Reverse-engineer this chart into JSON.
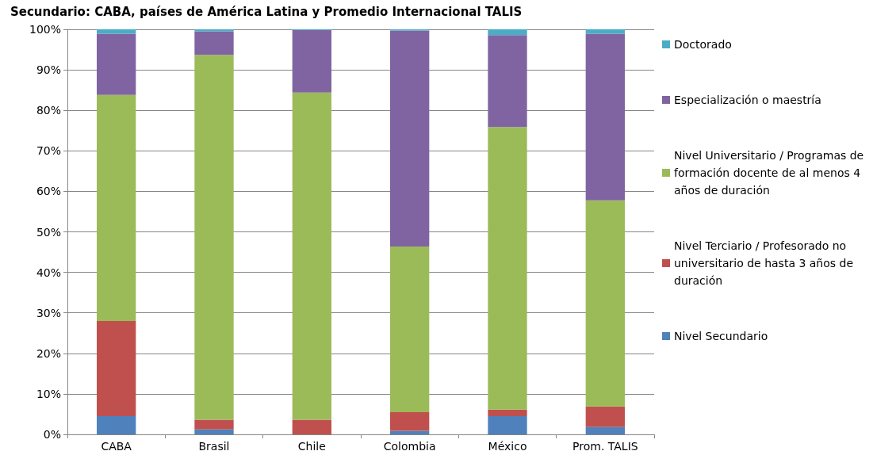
{
  "chart_data": {
    "type": "bar",
    "stacked": true,
    "title": "Secundario: CABA, países de América Latina y Promedio Internacional TALIS",
    "categories": [
      "CABA",
      "Brasil",
      "Chile",
      "Colombia",
      "México",
      "Prom. TALIS"
    ],
    "series": [
      {
        "name": "Nivel Secundario",
        "color": "#4f81bd",
        "values": [
          4.5,
          1.2,
          0,
          0.9,
          4.5,
          1.8
        ]
      },
      {
        "name": "Nivel Terciario / Profesorado no universitario de hasta 3 años de duración",
        "color": "#c0504d",
        "values": [
          23.5,
          2.4,
          3.6,
          4.6,
          1.6,
          5.1
        ]
      },
      {
        "name": "Nivel Universitario / Programas de formación docente de al menos 4 años de duración",
        "color": "#9bbb59",
        "values": [
          55.8,
          90.1,
          80.8,
          40.9,
          69.8,
          50.9
        ]
      },
      {
        "name": "Especialización o maestría",
        "color": "#8064a2",
        "values": [
          15.1,
          5.8,
          15.4,
          53.3,
          22.7,
          41.1
        ]
      },
      {
        "name": "Doctorado",
        "color": "#4bacc6",
        "values": [
          1.1,
          0.5,
          0.2,
          0.3,
          1.4,
          1.1
        ]
      }
    ],
    "ylim": [
      0,
      100
    ],
    "yticks": [
      {
        "value": 0,
        "label": "0%"
      },
      {
        "value": 10,
        "label": "10%"
      },
      {
        "value": 20,
        "label": "20%"
      },
      {
        "value": 30,
        "label": "30%"
      },
      {
        "value": 40,
        "label": "40%"
      },
      {
        "value": 50,
        "label": "50%"
      },
      {
        "value": 60,
        "label": "60%"
      },
      {
        "value": 70,
        "label": "70%"
      },
      {
        "value": 80,
        "label": "80%"
      },
      {
        "value": 90,
        "label": "90%"
      },
      {
        "value": 100,
        "label": "100%"
      }
    ],
    "grid": "y",
    "legend": "right"
  }
}
